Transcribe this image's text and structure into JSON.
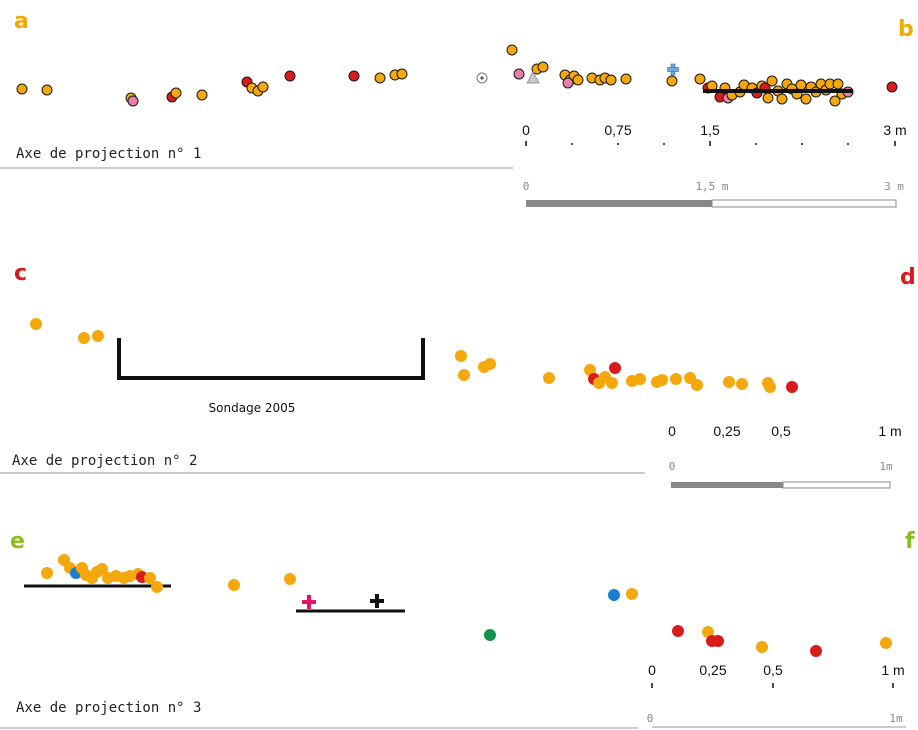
{
  "colors": {
    "orange": "#F5A80C",
    "red": "#D81B1B",
    "pink": "#E97FA8",
    "blue": "#1A7FD0",
    "green": "#12924A",
    "magenta": "#E0156A",
    "black": "#111111",
    "light_blue": "#6FA8DC",
    "grey": "#888888",
    "letter_yellow": "#F2A900",
    "letter_red": "#D81B1B",
    "letter_green": "#8BBE1F"
  },
  "panels": {
    "a": {
      "letter": "a",
      "axis_label": "Axe de projection n° 1"
    },
    "b": {
      "letter": "b",
      "ticks": [
        "0",
        "0,75",
        "1,5",
        "3 m"
      ],
      "scale_labels": [
        "0",
        "1,5 m",
        "3 m"
      ]
    },
    "c": {
      "letter": "c",
      "axis_label": "Axe de projection n° 2",
      "note": "Sondage 2005"
    },
    "d": {
      "letter": "d",
      "ticks": [
        "0",
        "0,25",
        "0,5",
        "1 m"
      ],
      "scale_labels": [
        "0",
        "1m"
      ]
    },
    "e": {
      "letter": "e",
      "axis_label": "Axe de projection n° 3"
    },
    "f": {
      "letter": "f",
      "ticks": [
        "0",
        "0,25",
        "0,5",
        "1 m"
      ],
      "scale_labels": [
        "0",
        "1m"
      ]
    }
  },
  "icons": {
    "target_symbol": "circle-dot-icon",
    "triangle_symbol": "triangle-icon",
    "cross_symbol": "plus-cross-icon"
  }
}
